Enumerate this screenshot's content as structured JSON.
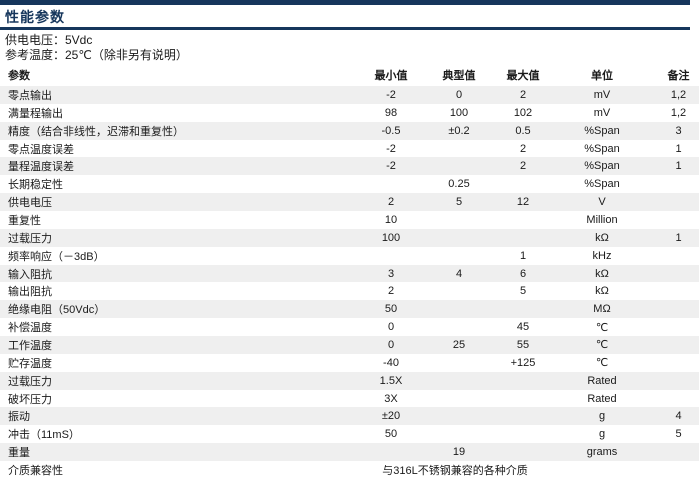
{
  "page": {
    "title": "性能参数",
    "supply_line": "供电电压：5Vdc",
    "ref_line": "参考温度：25℃（除非另有说明）"
  },
  "colors": {
    "accent_navy": "#16365C",
    "stripe_gray": "#EFEFEF",
    "text": "#1A1A1A"
  },
  "table": {
    "headers": {
      "param": "参数",
      "min": "最小值",
      "typ": "典型值",
      "max": "最大值",
      "unit": "单位",
      "note": "备注"
    },
    "rows": [
      {
        "name": "零点输出",
        "min": "-2",
        "typ": "0",
        "max": "2",
        "unit": "mV",
        "note": "1,2"
      },
      {
        "name": "满量程输出",
        "min": "98",
        "typ": "100",
        "max": "102",
        "unit": "mV",
        "note": "1,2"
      },
      {
        "name": "精度（结合非线性，迟滞和重复性）",
        "min": "-0.5",
        "typ": "±0.2",
        "max": "0.5",
        "unit": "%Span",
        "note": "3"
      },
      {
        "name": "零点温度误差",
        "min": "-2",
        "typ": "",
        "max": "2",
        "unit": "%Span",
        "note": "1"
      },
      {
        "name": "量程温度误差",
        "min": "-2",
        "typ": "",
        "max": "2",
        "unit": "%Span",
        "note": "1"
      },
      {
        "name": "长期稳定性",
        "min": "",
        "typ": "0.25",
        "max": "",
        "unit": "%Span",
        "note": ""
      },
      {
        "name": "供电电压",
        "min": "2",
        "typ": "5",
        "max": "12",
        "unit": "V",
        "note": ""
      },
      {
        "name": "重复性",
        "min": "10",
        "typ": "",
        "max": "",
        "unit": "Million",
        "note": ""
      },
      {
        "name": "过载压力",
        "min": "100",
        "typ": "",
        "max": "",
        "unit": "kΩ",
        "note": "1"
      },
      {
        "name": "频率响应（－3dB）",
        "min": "",
        "typ": "",
        "max": "1",
        "unit": "kHz",
        "note": ""
      },
      {
        "name": "输入阻抗",
        "min": "3",
        "typ": "4",
        "max": "6",
        "unit": "kΩ",
        "note": ""
      },
      {
        "name": "输出阻抗",
        "min": "2",
        "typ": "",
        "max": "5",
        "unit": "kΩ",
        "note": ""
      },
      {
        "name": "绝缘电阻（50Vdc）",
        "min": "50",
        "typ": "",
        "max": "",
        "unit": "MΩ",
        "note": ""
      },
      {
        "name": "补偿温度",
        "min": "0",
        "typ": "",
        "max": "45",
        "unit": "℃",
        "note": ""
      },
      {
        "name": "工作温度",
        "min": "0",
        "typ": "25",
        "max": "55",
        "unit": "℃",
        "note": ""
      },
      {
        "name": "贮存温度",
        "min": "-40",
        "typ": "",
        "max": "+125",
        "unit": "℃",
        "note": ""
      },
      {
        "name": "过载压力",
        "min": "1.5X",
        "typ": "",
        "max": "",
        "unit": "Rated",
        "note": ""
      },
      {
        "name": "破坏压力",
        "min": "3X",
        "typ": "",
        "max": "",
        "unit": "Rated",
        "note": ""
      },
      {
        "name": "振动",
        "min": "±20",
        "typ": "",
        "max": "",
        "unit": "g",
        "note": "4"
      },
      {
        "name": "冲击（11mS）",
        "min": "50",
        "typ": "",
        "max": "",
        "unit": "g",
        "note": "5"
      },
      {
        "name": "重量",
        "min": "",
        "typ": "19",
        "max": "",
        "unit": "grams",
        "note": ""
      },
      {
        "name": "介质兼容性",
        "span_value": "与316L不锈钢兼容的各种介质",
        "unit": "",
        "note": ""
      }
    ]
  }
}
